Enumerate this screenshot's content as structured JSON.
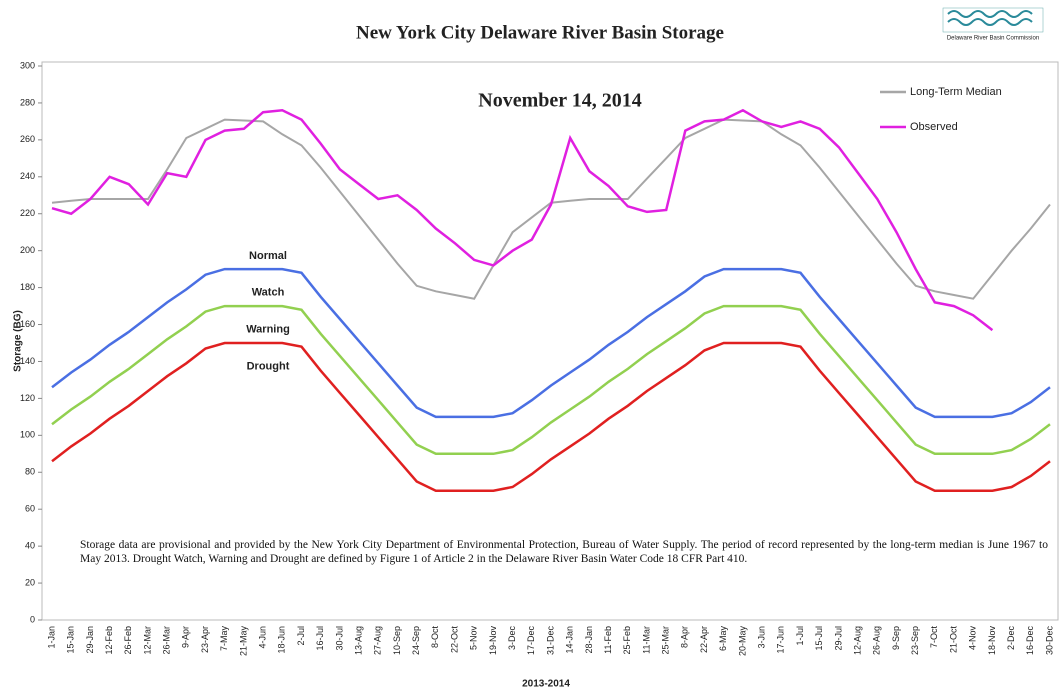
{
  "chart_data": {
    "type": "line",
    "title": "New York City Delaware River Basin Storage",
    "subtitle": "November 14, 2014",
    "logo_text": "Delaware River Basin Commission",
    "x_label": "2013-2014",
    "y_label": "Storage (BG)",
    "footnote": "Storage data are provisional and provided by the New York City Department of Environmental Protection, Bureau of Water Supply. The period of record represented by the long-term median is June 1967 to May 2013. Drought Watch, Warning and Drought are defined by Figure 1 of Article 2 in the Delaware River Basin Water Code 18 CFR Part 410.",
    "zone_labels": [
      "Normal",
      "Watch",
      "Warning",
      "Drought"
    ],
    "categories": [
      "1-Jan",
      "15-Jan",
      "29-Jan",
      "12-Feb",
      "26-Feb",
      "12-Mar",
      "26-Mar",
      "9-Apr",
      "23-Apr",
      "7-May",
      "21-May",
      "4-Jun",
      "18-Jun",
      "2-Jul",
      "16-Jul",
      "30-Jul",
      "13-Aug",
      "27-Aug",
      "10-Sep",
      "24-Sep",
      "8-Oct",
      "22-Oct",
      "5-Nov",
      "19-Nov",
      "3-Dec",
      "17-Dec",
      "31-Dec",
      "14-Jan",
      "28-Jan",
      "11-Feb",
      "25-Feb",
      "11-Mar",
      "25-Mar",
      "8-Apr",
      "22-Apr",
      "6-May",
      "20-May",
      "3-Jun",
      "17-Jun",
      "1-Jul",
      "15-Jul",
      "29-Jul",
      "12-Aug",
      "26-Aug",
      "9-Sep",
      "23-Sep",
      "7-Oct",
      "21-Oct",
      "4-Nov",
      "18-Nov",
      "2-Dec",
      "16-Dec",
      "30-Dec"
    ],
    "series": [
      {
        "name": "Long-Term Median",
        "color": "#a6a6a6",
        "legend": true,
        "values": [
          226,
          227,
          228,
          228,
          228,
          228,
          244,
          261,
          266,
          271,
          270.5,
          270,
          263,
          257,
          245,
          232,
          219,
          206,
          193,
          181,
          178,
          176,
          174,
          192,
          210,
          218,
          226,
          227,
          228,
          228,
          228,
          239,
          250,
          261,
          266,
          271,
          270.5,
          270,
          263,
          257,
          245,
          232,
          219,
          206,
          193,
          181,
          178,
          176,
          174,
          187,
          200,
          212,
          225
        ]
      },
      {
        "name": "Observed",
        "color": "#e020e0",
        "legend": true,
        "values": [
          223,
          220,
          228,
          240,
          236,
          225,
          242,
          240,
          260,
          265,
          266,
          275,
          276,
          271,
          258,
          244,
          236,
          228,
          230,
          222,
          212,
          204,
          195,
          192,
          200,
          206,
          225,
          261,
          243,
          235,
          224,
          221,
          222,
          265,
          270,
          271,
          276,
          270,
          267,
          270,
          266,
          256,
          242,
          228,
          210,
          190,
          172,
          170,
          165,
          157,
          null,
          null,
          null
        ]
      },
      {
        "color": "#4a6fe3",
        "legend": false,
        "values": [
          126,
          134,
          141,
          149,
          156,
          164,
          172,
          179,
          187,
          190,
          190,
          190,
          190,
          188,
          175,
          163,
          151,
          139,
          127,
          115,
          110,
          110,
          110,
          110,
          112,
          119,
          127,
          134,
          141,
          149,
          156,
          164,
          171,
          178,
          186,
          190,
          190,
          190,
          190,
          188,
          175,
          163,
          151,
          139,
          127,
          115,
          110,
          110,
          110,
          110,
          112,
          118,
          126
        ]
      },
      {
        "color": "#92d050",
        "legend": false,
        "values": [
          106,
          114,
          121,
          129,
          136,
          144,
          152,
          159,
          167,
          170,
          170,
          170,
          170,
          168,
          155,
          143,
          131,
          119,
          107,
          95,
          90,
          90,
          90,
          90,
          92,
          99,
          107,
          114,
          121,
          129,
          136,
          144,
          151,
          158,
          166,
          170,
          170,
          170,
          170,
          168,
          155,
          143,
          131,
          119,
          107,
          95,
          90,
          90,
          90,
          90,
          92,
          98,
          106
        ]
      },
      {
        "color": "#e02020",
        "legend": false,
        "values": [
          86,
          94,
          101,
          109,
          116,
          124,
          132,
          139,
          147,
          150,
          150,
          150,
          150,
          148,
          135,
          123,
          111,
          99,
          87,
          75,
          70,
          70,
          70,
          70,
          72,
          79,
          87,
          94,
          101,
          109,
          116,
          124,
          131,
          138,
          146,
          150,
          150,
          150,
          150,
          148,
          135,
          123,
          111,
          99,
          87,
          75,
          70,
          70,
          70,
          70,
          72,
          78,
          86
        ]
      }
    ],
    "ylim": [
      0,
      300
    ],
    "yticks": [
      0,
      20,
      40,
      60,
      80,
      100,
      120,
      140,
      160,
      180,
      200,
      220,
      240,
      260,
      280,
      300
    ],
    "legend_position": "upper right"
  }
}
